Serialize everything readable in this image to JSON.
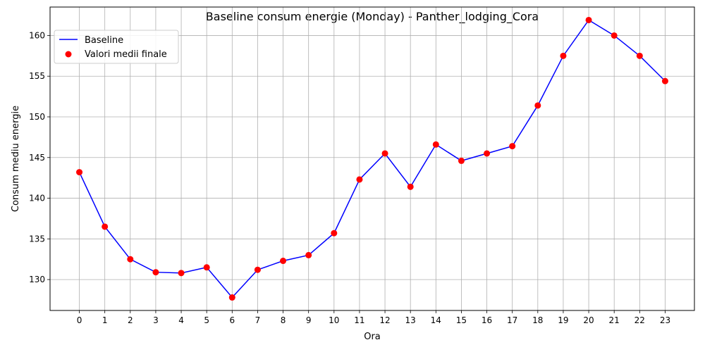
{
  "chart_data": {
    "type": "line",
    "title": "Baseline consum energie (Monday) - Panther_lodging_Cora",
    "xlabel": "Ora",
    "ylabel": "Consum mediu energie",
    "x": [
      0,
      1,
      2,
      3,
      4,
      5,
      6,
      7,
      8,
      9,
      10,
      11,
      12,
      13,
      14,
      15,
      16,
      17,
      18,
      19,
      20,
      21,
      22,
      23
    ],
    "x_tick_labels": [
      "0",
      "1",
      "2",
      "3",
      "4",
      "5",
      "6",
      "7",
      "8",
      "9",
      "10",
      "11",
      "12",
      "13",
      "14",
      "15",
      "16",
      "17",
      "18",
      "19",
      "20",
      "21",
      "22",
      "23"
    ],
    "xlim": [
      -1.15,
      24.15
    ],
    "ylim": [
      126.2,
      163.5
    ],
    "y_ticks": [
      130,
      135,
      140,
      145,
      150,
      155,
      160
    ],
    "y_tick_labels": [
      "130",
      "135",
      "140",
      "145",
      "150",
      "155",
      "160"
    ],
    "grid": true,
    "legend_position": "upper-left",
    "series": [
      {
        "name": "Baseline",
        "kind": "line",
        "color": "#0000ff",
        "values": [
          143.2,
          136.5,
          132.5,
          130.9,
          130.8,
          131.5,
          127.8,
          131.2,
          132.3,
          133.0,
          135.7,
          142.3,
          145.5,
          141.4,
          146.6,
          144.6,
          145.5,
          146.4,
          151.4,
          157.5,
          161.9,
          160.0,
          157.5,
          154.4
        ]
      },
      {
        "name": "Valori medii finale",
        "kind": "scatter",
        "color": "#ff0000",
        "values": [
          143.2,
          136.5,
          132.5,
          130.9,
          130.8,
          131.5,
          127.8,
          131.2,
          132.3,
          133.0,
          135.7,
          142.3,
          145.5,
          141.4,
          146.6,
          144.6,
          145.5,
          146.4,
          151.4,
          157.5,
          161.9,
          160.0,
          157.5,
          154.4
        ]
      }
    ]
  }
}
